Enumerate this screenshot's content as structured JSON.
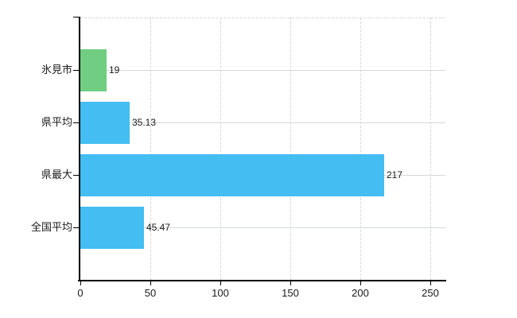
{
  "chart_data": {
    "type": "bar",
    "orientation": "horizontal",
    "title": "",
    "categories": [
      "氷見市",
      "県平均",
      "県最大",
      "全国平均"
    ],
    "values": [
      19,
      35.13,
      217,
      45.47
    ],
    "value_labels": [
      "19",
      "35.13",
      "217",
      "45.47"
    ],
    "bar_colors": [
      "#70cd82",
      "#43bdf2",
      "#43bdf2",
      "#43bdf2"
    ],
    "x_ticks": [
      0,
      50,
      100,
      150,
      200,
      250
    ],
    "x_tick_labels": [
      "0",
      "50",
      "100",
      "150",
      "200",
      "250"
    ],
    "xlim": [
      0,
      261
    ],
    "grid": true,
    "legend": "none",
    "colors": {
      "axis": "#000000",
      "gridline_horizontal": "#d4dad4",
      "gridline_vertical": "#d6d6d6",
      "text": "#1a1a1a",
      "background": "#ffffff",
      "highlight_bar": "#70cd82",
      "default_bar": "#43bdf2"
    }
  }
}
